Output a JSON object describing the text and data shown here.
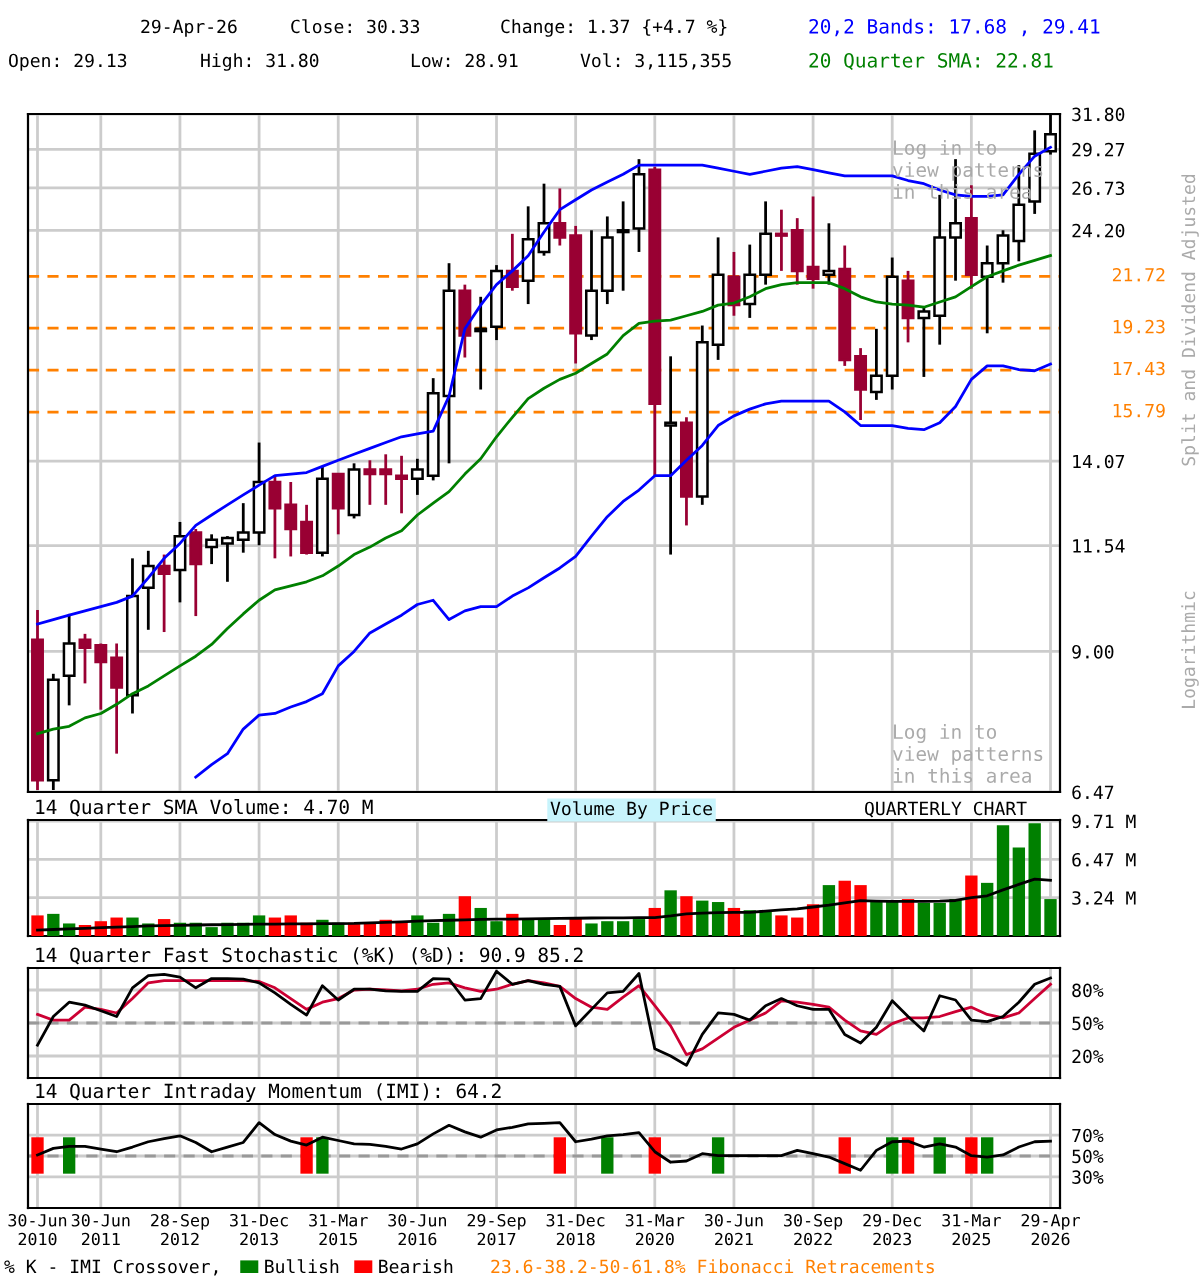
{
  "chart_data": [
    {
      "type": "candlestick",
      "log": true,
      "tick_labels": "y",
      "grid": true,
      "categories": [
        null,
        null,
        null,
        null,
        null,
        null,
        null,
        null,
        null,
        null,
        null,
        null,
        null,
        null,
        null,
        null,
        null,
        null,
        null,
        null,
        null,
        null,
        null,
        null,
        null,
        null,
        null,
        null,
        null,
        null,
        null,
        null,
        null,
        null,
        null,
        null,
        null,
        null,
        null,
        null,
        null,
        null,
        null,
        null,
        null,
        null,
        null,
        null,
        null,
        null,
        null,
        null,
        null,
        null,
        null,
        null,
        null,
        null,
        null,
        null,
        null,
        null,
        null,
        null,
        null
      ],
      "ohlc": [
        [
          9.25,
          9.92,
          6.5,
          6.65
        ],
        [
          6.65,
          8.54,
          6.5,
          8.42
        ],
        [
          8.5,
          9.83,
          7.93,
          9.17
        ],
        [
          9.25,
          9.38,
          8.35,
          9.08
        ],
        [
          9.13,
          9.17,
          7.85,
          8.78
        ],
        [
          8.87,
          9.17,
          7.08,
          8.27
        ],
        [
          8.12,
          11.2,
          7.78,
          10.25
        ],
        [
          10.45,
          11.4,
          9.47,
          11.0
        ],
        [
          11.0,
          11.3,
          9.42,
          10.8
        ],
        [
          10.9,
          12.2,
          10.1,
          11.8
        ],
        [
          11.9,
          12.0,
          9.78,
          11.05
        ],
        [
          11.5,
          11.85,
          11.05,
          11.7
        ],
        [
          11.6,
          11.8,
          10.6,
          11.75
        ],
        [
          11.7,
          12.75,
          11.35,
          11.9
        ],
        [
          11.9,
          14.7,
          11.55,
          13.4
        ],
        [
          13.4,
          13.6,
          11.2,
          12.6
        ],
        [
          12.7,
          13.4,
          11.25,
          12.0
        ],
        [
          12.2,
          12.7,
          11.3,
          11.35
        ],
        [
          11.35,
          13.9,
          11.25,
          13.5
        ],
        [
          13.65,
          13.65,
          11.85,
          12.6
        ],
        [
          12.4,
          14.0,
          12.3,
          13.8
        ],
        [
          13.8,
          14.1,
          12.7,
          13.65
        ],
        [
          13.8,
          14.3,
          12.7,
          13.65
        ],
        [
          13.6,
          14.25,
          12.45,
          13.5
        ],
        [
          13.5,
          14.15,
          13.0,
          13.8
        ],
        [
          13.6,
          17.1,
          13.45,
          16.5
        ],
        [
          16.4,
          22.4,
          14.0,
          21.0
        ],
        [
          21.0,
          21.3,
          17.95,
          18.9
        ],
        [
          19.1,
          20.7,
          16.65,
          19.2
        ],
        [
          19.3,
          22.3,
          18.7,
          22.0
        ],
        [
          22.0,
          24.0,
          21.0,
          21.2
        ],
        [
          21.5,
          25.6,
          20.35,
          23.7
        ],
        [
          23.0,
          27.0,
          22.8,
          24.6
        ],
        [
          24.6,
          26.7,
          23.35,
          23.8
        ],
        [
          23.9,
          24.45,
          17.7,
          19.0
        ],
        [
          18.9,
          24.2,
          18.7,
          21.0
        ],
        [
          21.0,
          25.0,
          20.35,
          23.8
        ],
        [
          24.1,
          25.9,
          21.0,
          24.2
        ],
        [
          24.3,
          28.6,
          23.0,
          27.6
        ],
        [
          27.9,
          28.1,
          13.6,
          16.1
        ],
        [
          15.3,
          18.0,
          11.3,
          15.4
        ],
        [
          15.4,
          15.6,
          12.1,
          12.95
        ],
        [
          12.95,
          19.35,
          12.7,
          18.6
        ],
        [
          18.5,
          23.8,
          17.85,
          21.8
        ],
        [
          21.7,
          23.0,
          19.8,
          20.3
        ],
        [
          20.35,
          23.4,
          19.7,
          21.8
        ],
        [
          21.8,
          25.9,
          21.3,
          24.0
        ],
        [
          24.0,
          25.4,
          22.0,
          23.9
        ],
        [
          24.2,
          24.9,
          21.3,
          22.0
        ],
        [
          22.2,
          26.2,
          21.1,
          21.6
        ],
        [
          21.8,
          24.6,
          21.3,
          22.0
        ],
        [
          22.1,
          23.35,
          17.6,
          17.85
        ],
        [
          18.0,
          18.35,
          15.5,
          16.65
        ],
        [
          16.55,
          19.2,
          16.25,
          17.2
        ],
        [
          17.2,
          22.7,
          16.65,
          21.7
        ],
        [
          21.5,
          22.0,
          18.6,
          19.7
        ],
        [
          19.7,
          20.2,
          17.15,
          20.0
        ],
        [
          19.8,
          26.3,
          18.5,
          23.8
        ],
        [
          23.8,
          28.6,
          21.5,
          24.6
        ],
        [
          24.9,
          26.9,
          21.1,
          21.8
        ],
        [
          21.7,
          23.35,
          19.0,
          22.4
        ],
        [
          22.4,
          24.2,
          21.4,
          23.9
        ],
        [
          23.6,
          28.2,
          22.5,
          25.7
        ],
        [
          25.9,
          30.6,
          25.15,
          28.96
        ],
        [
          29.13,
          31.8,
          28.91,
          30.33
        ]
      ],
      "colors": [
        "#990033",
        "#ffffff",
        "#ffffff",
        "#990033",
        "#990033",
        "#990033",
        "#ffffff",
        "#ffffff",
        "#990033",
        "#ffffff",
        "#990033",
        "#ffffff",
        "#ffffff",
        "#ffffff",
        "#ffffff",
        "#990033",
        "#990033",
        "#990033",
        "#ffffff",
        "#990033",
        "#ffffff",
        "#990033",
        "#990033",
        "#990033",
        "#ffffff",
        "#ffffff",
        "#ffffff",
        "#990033",
        "#ffffff",
        "#ffffff",
        "#990033",
        "#ffffff",
        "#ffffff",
        "#990033",
        "#990033",
        "#ffffff",
        "#ffffff",
        "#ffffff",
        "#ffffff",
        "#990033",
        "#ffffff",
        "#990033",
        "#ffffff",
        "#ffffff",
        "#990033",
        "#ffffff",
        "#ffffff",
        "#990033",
        "#990033",
        "#990033",
        "#ffffff",
        "#990033",
        "#990033",
        "#ffffff",
        "#ffffff",
        "#990033",
        "#ffffff",
        "#ffffff",
        "#ffffff",
        "#990033",
        "#ffffff",
        "#ffffff",
        "#ffffff",
        "#ffffff",
        "#ffffff"
      ],
      "series": [
        {
          "type": "line",
          "name": "20,2 Bands: 17.68 , 29.41",
          "color": "#0000ff",
          "values": [
            9.6,
            9.7,
            9.8,
            9.9,
            10.0,
            10.1,
            10.25,
            10.7,
            11.2,
            11.6,
            12.1,
            12.4,
            12.7,
            13.0,
            13.3,
            13.6,
            13.65,
            13.7,
            13.9,
            14.1,
            14.3,
            14.5,
            14.7,
            14.9,
            15.0,
            15.1,
            16.4,
            19.2,
            20.3,
            21.3,
            22.0,
            22.8,
            24.1,
            25.4,
            26.0,
            26.6,
            27.1,
            27.6,
            28.2,
            28.2,
            28.2,
            28.2,
            28.2,
            28.0,
            27.8,
            27.6,
            27.8,
            28.0,
            28.1,
            27.9,
            27.7,
            27.5,
            27.5,
            27.5,
            27.5,
            27.2,
            27.0,
            26.6,
            26.3,
            26.2,
            26.2,
            26.3,
            27.6,
            28.8,
            29.41
          ]
        },
        {
          "type": "line",
          "color": "#0000ff",
          "values": [
            null,
            null,
            null,
            null,
            null,
            null,
            null,
            null,
            null,
            null,
            6.7,
            6.9,
            7.08,
            7.5,
            7.75,
            7.78,
            7.9,
            8.0,
            8.15,
            8.7,
            9.0,
            9.4,
            9.6,
            9.8,
            10.05,
            10.15,
            9.7,
            9.9,
            10.0,
            10.0,
            10.25,
            10.45,
            10.7,
            10.95,
            11.25,
            11.8,
            12.35,
            12.8,
            13.15,
            13.6,
            13.6,
            14.1,
            14.6,
            15.3,
            15.65,
            15.9,
            16.1,
            16.2,
            16.2,
            16.2,
            16.2,
            15.8,
            15.3,
            15.3,
            15.3,
            15.2,
            15.15,
            15.4,
            16.0,
            17.05,
            17.6,
            17.6,
            17.45,
            17.4,
            17.68
          ]
        },
        {
          "type": "line",
          "name": "20 Quarter SMA: 22.81",
          "color": "#008000",
          "values": [
            7.42,
            7.5,
            7.55,
            7.7,
            7.78,
            7.95,
            8.15,
            8.3,
            8.5,
            8.7,
            8.9,
            9.15,
            9.5,
            9.83,
            10.15,
            10.4,
            10.5,
            10.6,
            10.75,
            11.0,
            11.3,
            11.5,
            11.75,
            11.95,
            12.4,
            12.75,
            13.1,
            13.65,
            14.15,
            14.9,
            15.6,
            16.3,
            16.7,
            17.05,
            17.3,
            17.7,
            18.1,
            18.9,
            19.45,
            19.55,
            19.6,
            19.8,
            20.0,
            20.3,
            20.4,
            20.7,
            21.1,
            21.3,
            21.4,
            21.4,
            21.4,
            21.1,
            20.7,
            20.45,
            20.35,
            20.3,
            20.2,
            20.45,
            20.7,
            21.2,
            21.7,
            22.0,
            22.3,
            22.55,
            22.81
          ]
        }
      ],
      "ylim": [
        6.47,
        31.8
      ],
      "yticks": [
        {
          "value": 31.8,
          "label": "31.80"
        },
        29.27,
        26.73,
        {
          "value": 24.2,
          "label": "24.20"
        },
        14.07,
        11.54,
        {
          "value": 9,
          "label": "9.00"
        },
        6.47
      ],
      "ref_lines": [
        {
          "axis": "y",
          "value": 21.72,
          "label": "21.72",
          "color": "#ff8000",
          "line_style": "dashed"
        },
        {
          "axis": "y",
          "value": 19.23,
          "label": "19.23",
          "color": "#ff8000",
          "line_style": "dashed"
        },
        {
          "axis": "y",
          "value": 17.43,
          "label": "17.43",
          "color": "#ff8000",
          "line_style": "dashed"
        },
        {
          "axis": "y",
          "value": 15.79,
          "label": "15.79",
          "color": "#ff8000",
          "line_style": "dashed"
        }
      ],
      "annotations": [
        "29-Apr-26",
        "Close: 30.33",
        "Change: 1.37 {+4.7 %}",
        "Open: 29.13",
        "High: 31.80",
        "Low: 28.91",
        "Vol: 3,115,355",
        "Log in to\nview patterns\nin this area",
        "Log in to\nview patterns\nin this area",
        "Split and Dividend Adjusted",
        "Logarithmic"
      ]
    },
    {
      "type": "bar",
      "title": "14 Quarter SMA Volume: 4.70 M",
      "tick_labels": "y",
      "grid": true,
      "categories": [
        null,
        null,
        null,
        null,
        null,
        null,
        null,
        null,
        null,
        null,
        null,
        null,
        null,
        null,
        null,
        null,
        null,
        null,
        null,
        null,
        null,
        null,
        null,
        null,
        null,
        null,
        null,
        null,
        null,
        null,
        null,
        null,
        null,
        null,
        null,
        null,
        null,
        null,
        null,
        null,
        null,
        null,
        null,
        null,
        null,
        null,
        null,
        null,
        null,
        null,
        null,
        null,
        null,
        null,
        null,
        null,
        null,
        null,
        null,
        null,
        null,
        null,
        null,
        null,
        null
      ],
      "series": [
        {
          "type": "bar",
          "values": [
            1.74,
            1.87,
            1.06,
            0.93,
            1.25,
            1.56,
            1.56,
            1.06,
            1.43,
            1.12,
            1.12,
            0.75,
            1.12,
            1.12,
            1.74,
            1.56,
            1.74,
            1.12,
            1.37,
            1.12,
            1.12,
            1.12,
            1.37,
            1.12,
            1.74,
            1.12,
            1.87,
            3.36,
            2.37,
            1.25,
            1.87,
            1.43,
            1.43,
            0.93,
            1.43,
            1.06,
            1.25,
            1.25,
            1.43,
            2.37,
            3.86,
            3.36,
            2.99,
            2.87,
            2.37,
            2.18,
            2.18,
            1.74,
            1.56,
            2.68,
            4.3,
            4.67,
            4.3,
            2.99,
            2.99,
            3.12,
            2.8,
            2.8,
            3.12,
            5.11,
            4.49,
            9.35,
            7.48,
            9.53,
            3.12
          ],
          "colors": [
            "#ff0000",
            "#008000",
            "#008000",
            "#ff0000",
            "#ff0000",
            "#ff0000",
            "#008000",
            "#008000",
            "#ff0000",
            "#008000",
            "#008000",
            "#008000",
            "#008000",
            "#008000",
            "#008000",
            "#ff0000",
            "#ff0000",
            "#ff0000",
            "#008000",
            "#008000",
            "#ff0000",
            "#ff0000",
            "#ff0000",
            "#ff0000",
            "#008000",
            "#008000",
            "#008000",
            "#ff0000",
            "#008000",
            "#008000",
            "#ff0000",
            "#008000",
            "#008000",
            "#ff0000",
            "#ff0000",
            "#008000",
            "#008000",
            "#008000",
            "#008000",
            "#ff0000",
            "#008000",
            "#ff0000",
            "#008000",
            "#008000",
            "#ff0000",
            "#008000",
            "#008000",
            "#ff0000",
            "#ff0000",
            "#ff0000",
            "#008000",
            "#ff0000",
            "#ff0000",
            "#008000",
            "#008000",
            "#ff0000",
            "#008000",
            "#008000",
            "#008000",
            "#ff0000",
            "#008000",
            "#008000",
            "#008000",
            "#008000",
            "#008000"
          ]
        },
        {
          "type": "line",
          "color": "#000000",
          "values": [
            0.5,
            0.55,
            0.6,
            0.65,
            0.7,
            0.75,
            0.8,
            0.85,
            0.88,
            0.9,
            0.93,
            0.95,
            0.97,
            0.99,
            1.0,
            1.01,
            1.02,
            1.03,
            1.04,
            1.05,
            1.06,
            1.1,
            1.15,
            1.2,
            1.25,
            1.3,
            1.33,
            1.37,
            1.4,
            1.42,
            1.43,
            1.45,
            1.47,
            1.49,
            1.5,
            1.52,
            1.53,
            1.54,
            1.55,
            1.56,
            1.7,
            1.87,
            1.93,
            1.97,
            2.0,
            2.0,
            2.1,
            2.2,
            2.3,
            2.45,
            2.6,
            2.8,
            2.99,
            2.95,
            2.93,
            2.93,
            2.93,
            2.95,
            3.0,
            3.24,
            3.4,
            3.9,
            4.36,
            4.8,
            4.7
          ]
        }
      ],
      "ylim": [
        0,
        9.8
      ],
      "yticks": [
        {
          "value": 3.24,
          "label": "3.24 M"
        },
        {
          "value": 6.47,
          "label": "6.47 M"
        },
        {
          "value": 9.71,
          "label": "9.71 M"
        }
      ],
      "annotations": [
        "Volume By Price",
        "QUARTERLY CHART"
      ]
    },
    {
      "type": "line",
      "title": "14 Quarter Fast Stochastic (%K) (%D): 90.9 85.2",
      "tick_labels": "y",
      "grid": true,
      "categories": [
        null,
        null,
        null,
        null,
        null,
        null,
        null,
        null,
        null,
        null,
        null,
        null,
        null,
        null,
        null,
        null,
        null,
        null,
        null,
        null,
        null,
        null,
        null,
        null,
        null,
        null,
        null,
        null,
        null,
        null,
        null,
        null,
        null,
        null,
        null,
        null,
        null,
        null,
        null,
        null,
        null,
        null,
        null,
        null,
        null,
        null,
        null,
        null,
        null,
        null,
        null,
        null,
        null,
        null,
        null,
        null,
        null,
        null,
        null,
        null,
        null,
        null,
        null,
        null,
        null
      ],
      "series": [
        {
          "type": "line",
          "color": "#cc0033",
          "values": [
            57.8,
            52.6,
            52.6,
            64.4,
            62.4,
            59.1,
            72.2,
            86.5,
            88.5,
            88.5,
            88.5,
            88.5,
            88.5,
            88.5,
            87.8,
            82.0,
            72.2,
            62.4,
            68.9,
            72.2,
            80.0,
            80.7,
            80.0,
            79.3,
            80.7,
            85.2,
            86.5,
            82.0,
            78.7,
            80.7,
            85.2,
            88.5,
            86.5,
            83.3,
            72.2,
            64.4,
            62.4,
            73.5,
            83.9,
            65.7,
            47.4,
            21.3,
            26.5,
            36.3,
            46.1,
            52.6,
            59.1,
            70.2,
            68.9,
            67.0,
            64.4,
            52.6,
            42.8,
            39.6,
            49.4,
            54.6,
            54.6,
            55.9,
            60.4,
            64.4,
            57.8,
            54.6,
            59.1,
            72.2,
            85.2
          ]
        },
        {
          "type": "line",
          "color": "#000000",
          "values": [
            29.8,
            55.9,
            68.9,
            66.3,
            61.1,
            55.9,
            82.0,
            93.0,
            94.3,
            91.7,
            82.0,
            90.4,
            90.4,
            89.8,
            86.5,
            77.4,
            67.0,
            57.2,
            83.9,
            70.9,
            80.7,
            80.7,
            79.3,
            78.7,
            78.7,
            90.4,
            89.8,
            70.9,
            72.2,
            97.0,
            85.2,
            88.5,
            85.2,
            83.3,
            47.4,
            62.4,
            77.4,
            78.7,
            95.0,
            26.5,
            20.0,
            11.5,
            39.6,
            59.1,
            57.8,
            52.6,
            65.7,
            72.2,
            65.7,
            62.4,
            62.4,
            39.6,
            31.8,
            46.1,
            70.2,
            55.9,
            42.8,
            74.8,
            70.9,
            52.6,
            51.3,
            55.9,
            68.9,
            85.2,
            90.9
          ]
        }
      ],
      "ylim": [
        0,
        100
      ],
      "yticks": [
        {
          "value": 20,
          "label": "20%"
        },
        {
          "value": 50,
          "label": "50%"
        },
        {
          "value": 80,
          "label": "80%"
        }
      ],
      "ref_lines": [
        {
          "axis": "y",
          "value": 50,
          "color": "#999999",
          "line_style": "dashed"
        }
      ]
    },
    {
      "type": "line",
      "title": "14 Quarter Intraday Momentum (IMI): 64.2",
      "grid": true,
      "legend": "bottom",
      "categories": [
        "30-Jun\n2010",
        null,
        null,
        null,
        "30-Jun\n2011",
        null,
        null,
        null,
        null,
        "28-Sep\n2012",
        null,
        null,
        null,
        null,
        "31-Dec\n2013",
        null,
        null,
        null,
        null,
        "31-Mar\n2015",
        null,
        null,
        null,
        null,
        "30-Jun\n2016",
        null,
        null,
        null,
        null,
        "29-Sep\n2017",
        null,
        null,
        null,
        null,
        "31-Dec\n2018",
        null,
        null,
        null,
        null,
        "31-Mar\n2020",
        null,
        null,
        null,
        null,
        "30-Jun\n2021",
        null,
        null,
        null,
        null,
        "30-Sep\n2022",
        null,
        null,
        null,
        null,
        "29-Dec\n2023",
        null,
        null,
        null,
        null,
        "31-Mar\n2025",
        null,
        null,
        null,
        null,
        "29-Apr\n2026"
      ],
      "series": [
        {
          "type": "bar",
          "name": "Bullish",
          "color": "#008000",
          "values": [
            null,
            null,
            35,
            null,
            null,
            null,
            null,
            null,
            null,
            null,
            null,
            null,
            null,
            null,
            null,
            null,
            null,
            null,
            35,
            null,
            null,
            null,
            null,
            null,
            null,
            null,
            null,
            null,
            null,
            null,
            null,
            null,
            null,
            null,
            null,
            null,
            35,
            null,
            null,
            null,
            null,
            null,
            null,
            35,
            null,
            null,
            null,
            null,
            null,
            null,
            null,
            null,
            null,
            null,
            35,
            null,
            null,
            35,
            null,
            null,
            35,
            null,
            null,
            null,
            null
          ],
          "base": [
            null,
            null,
            33,
            null,
            null,
            null,
            null,
            null,
            null,
            null,
            null,
            null,
            null,
            null,
            null,
            null,
            null,
            null,
            33,
            null,
            null,
            null,
            null,
            null,
            null,
            null,
            null,
            null,
            null,
            null,
            null,
            null,
            null,
            null,
            null,
            null,
            33,
            null,
            null,
            null,
            null,
            null,
            null,
            33,
            null,
            null,
            null,
            null,
            null,
            null,
            null,
            null,
            null,
            null,
            33,
            null,
            null,
            33,
            null,
            null,
            33,
            null,
            null,
            null,
            null
          ]
        },
        {
          "type": "bar",
          "name": "Bearish",
          "color": "#ff0000",
          "values": [
            35,
            null,
            null,
            null,
            null,
            null,
            null,
            null,
            null,
            null,
            null,
            null,
            null,
            null,
            null,
            null,
            null,
            35,
            null,
            null,
            null,
            null,
            null,
            null,
            null,
            null,
            null,
            null,
            null,
            null,
            null,
            null,
            null,
            35,
            null,
            null,
            null,
            null,
            null,
            35,
            null,
            null,
            null,
            null,
            null,
            null,
            null,
            null,
            null,
            null,
            null,
            35,
            null,
            null,
            null,
            35,
            null,
            null,
            null,
            35,
            null,
            null,
            null,
            null,
            null
          ],
          "base": [
            33,
            null,
            null,
            null,
            null,
            null,
            null,
            null,
            null,
            null,
            null,
            null,
            null,
            null,
            null,
            null,
            null,
            33,
            null,
            null,
            null,
            null,
            null,
            null,
            null,
            null,
            null,
            null,
            null,
            null,
            null,
            null,
            null,
            33,
            null,
            null,
            null,
            null,
            null,
            33,
            null,
            null,
            null,
            null,
            null,
            null,
            null,
            null,
            null,
            null,
            null,
            33,
            null,
            null,
            null,
            33,
            null,
            null,
            null,
            33,
            null,
            null,
            null,
            null,
            null
          ]
        },
        {
          "type": "line",
          "color": "#000000",
          "values": [
            51.0,
            57.3,
            59.2,
            59.2,
            56.7,
            54.1,
            58.6,
            63.7,
            66.8,
            69.4,
            63.0,
            54.1,
            58.6,
            63.0,
            82.1,
            70.6,
            64.3,
            60.5,
            68.1,
            64.9,
            61.7,
            61.1,
            59.2,
            56.7,
            61.7,
            71.3,
            79.5,
            73.2,
            68.1,
            75.1,
            77.6,
            80.8,
            81.4,
            82.1,
            63.7,
            66.2,
            69.4,
            70.6,
            72.5,
            54.1,
            44.0,
            45.2,
            52.2,
            50.3,
            50.3,
            50.3,
            50.3,
            50.3,
            55.4,
            52.2,
            49.0,
            42.7,
            36.3,
            55.4,
            63.7,
            64.3,
            58.6,
            61.7,
            58.6,
            50.3,
            49.0,
            51.0,
            58.6,
            63.7,
            64.2
          ]
        }
      ],
      "ylim": [
        0,
        100
      ],
      "yticks": [
        {
          "value": 30,
          "label": "30%"
        },
        {
          "value": 50,
          "label": "50%"
        },
        {
          "value": 70,
          "label": "70%"
        }
      ],
      "ref_lines": [
        {
          "axis": "y",
          "value": 50,
          "color": "#999999",
          "line_style": "dashed"
        }
      ],
      "annotations": [
        "% K - IMI Crossover,",
        "23.6-38.2-50-61.8% Fibonacci Retracements"
      ]
    }
  ]
}
